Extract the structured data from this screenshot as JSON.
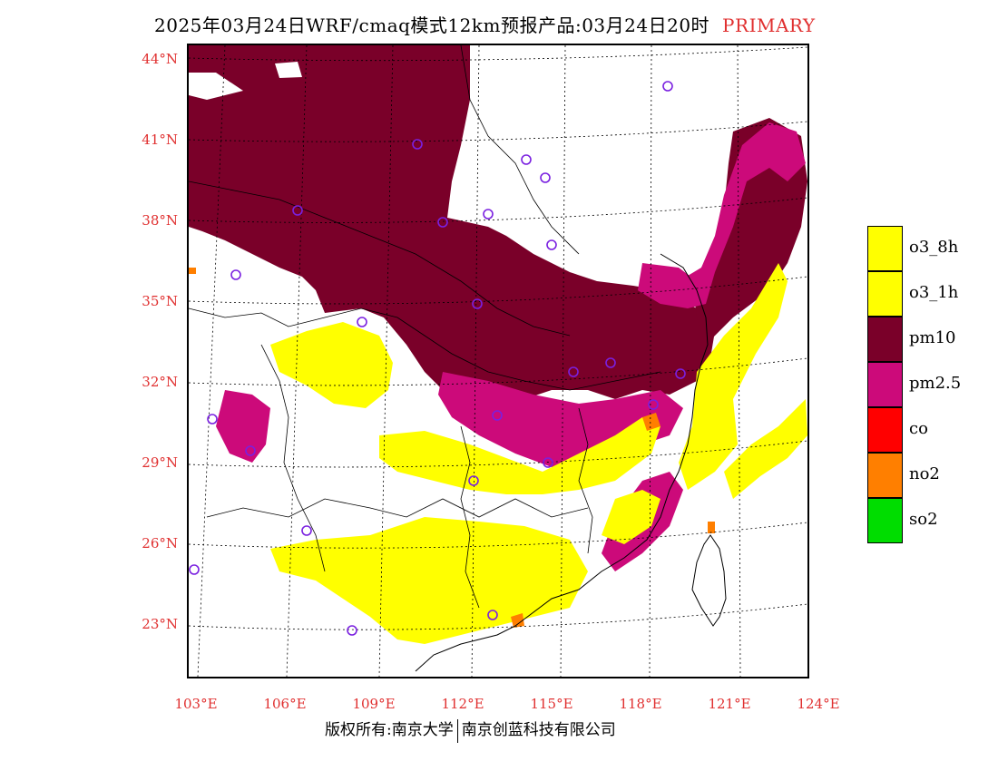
{
  "header": {
    "title": "2025年03月24日WRF/cmaq模式12km预报产品:03月24日20时",
    "mode": "PRIMARY"
  },
  "axes": {
    "lat_labels": [
      "44°N",
      "41°N",
      "38°N",
      "35°N",
      "32°N",
      "29°N",
      "26°N",
      "23°N"
    ],
    "lon_labels": [
      "103°E",
      "106°E",
      "109°E",
      "112°E",
      "115°E",
      "118°E",
      "121°E",
      "124°E"
    ]
  },
  "legend": [
    {
      "label": "o3_8h",
      "color": "#ffff00"
    },
    {
      "label": "o3_1h",
      "color": "#ffff00"
    },
    {
      "label": "pm10",
      "color": "#7a0029"
    },
    {
      "label": "pm2.5",
      "color": "#cc0a7a"
    },
    {
      "label": "co",
      "color": "#ff0000"
    },
    {
      "label": "no2",
      "color": "#ff7f00"
    },
    {
      "label": "so2",
      "color": "#00dd00"
    }
  ],
  "footer": {
    "left": "版权所有:南京大学",
    "right": "南京创蓝科技有限公司"
  },
  "colors": {
    "label_red": "#e03030",
    "pm10": "#7a0029",
    "pm25": "#cc0a7a",
    "o3": "#ffff00",
    "no2": "#ff7f00",
    "station": "#7a20e0"
  }
}
